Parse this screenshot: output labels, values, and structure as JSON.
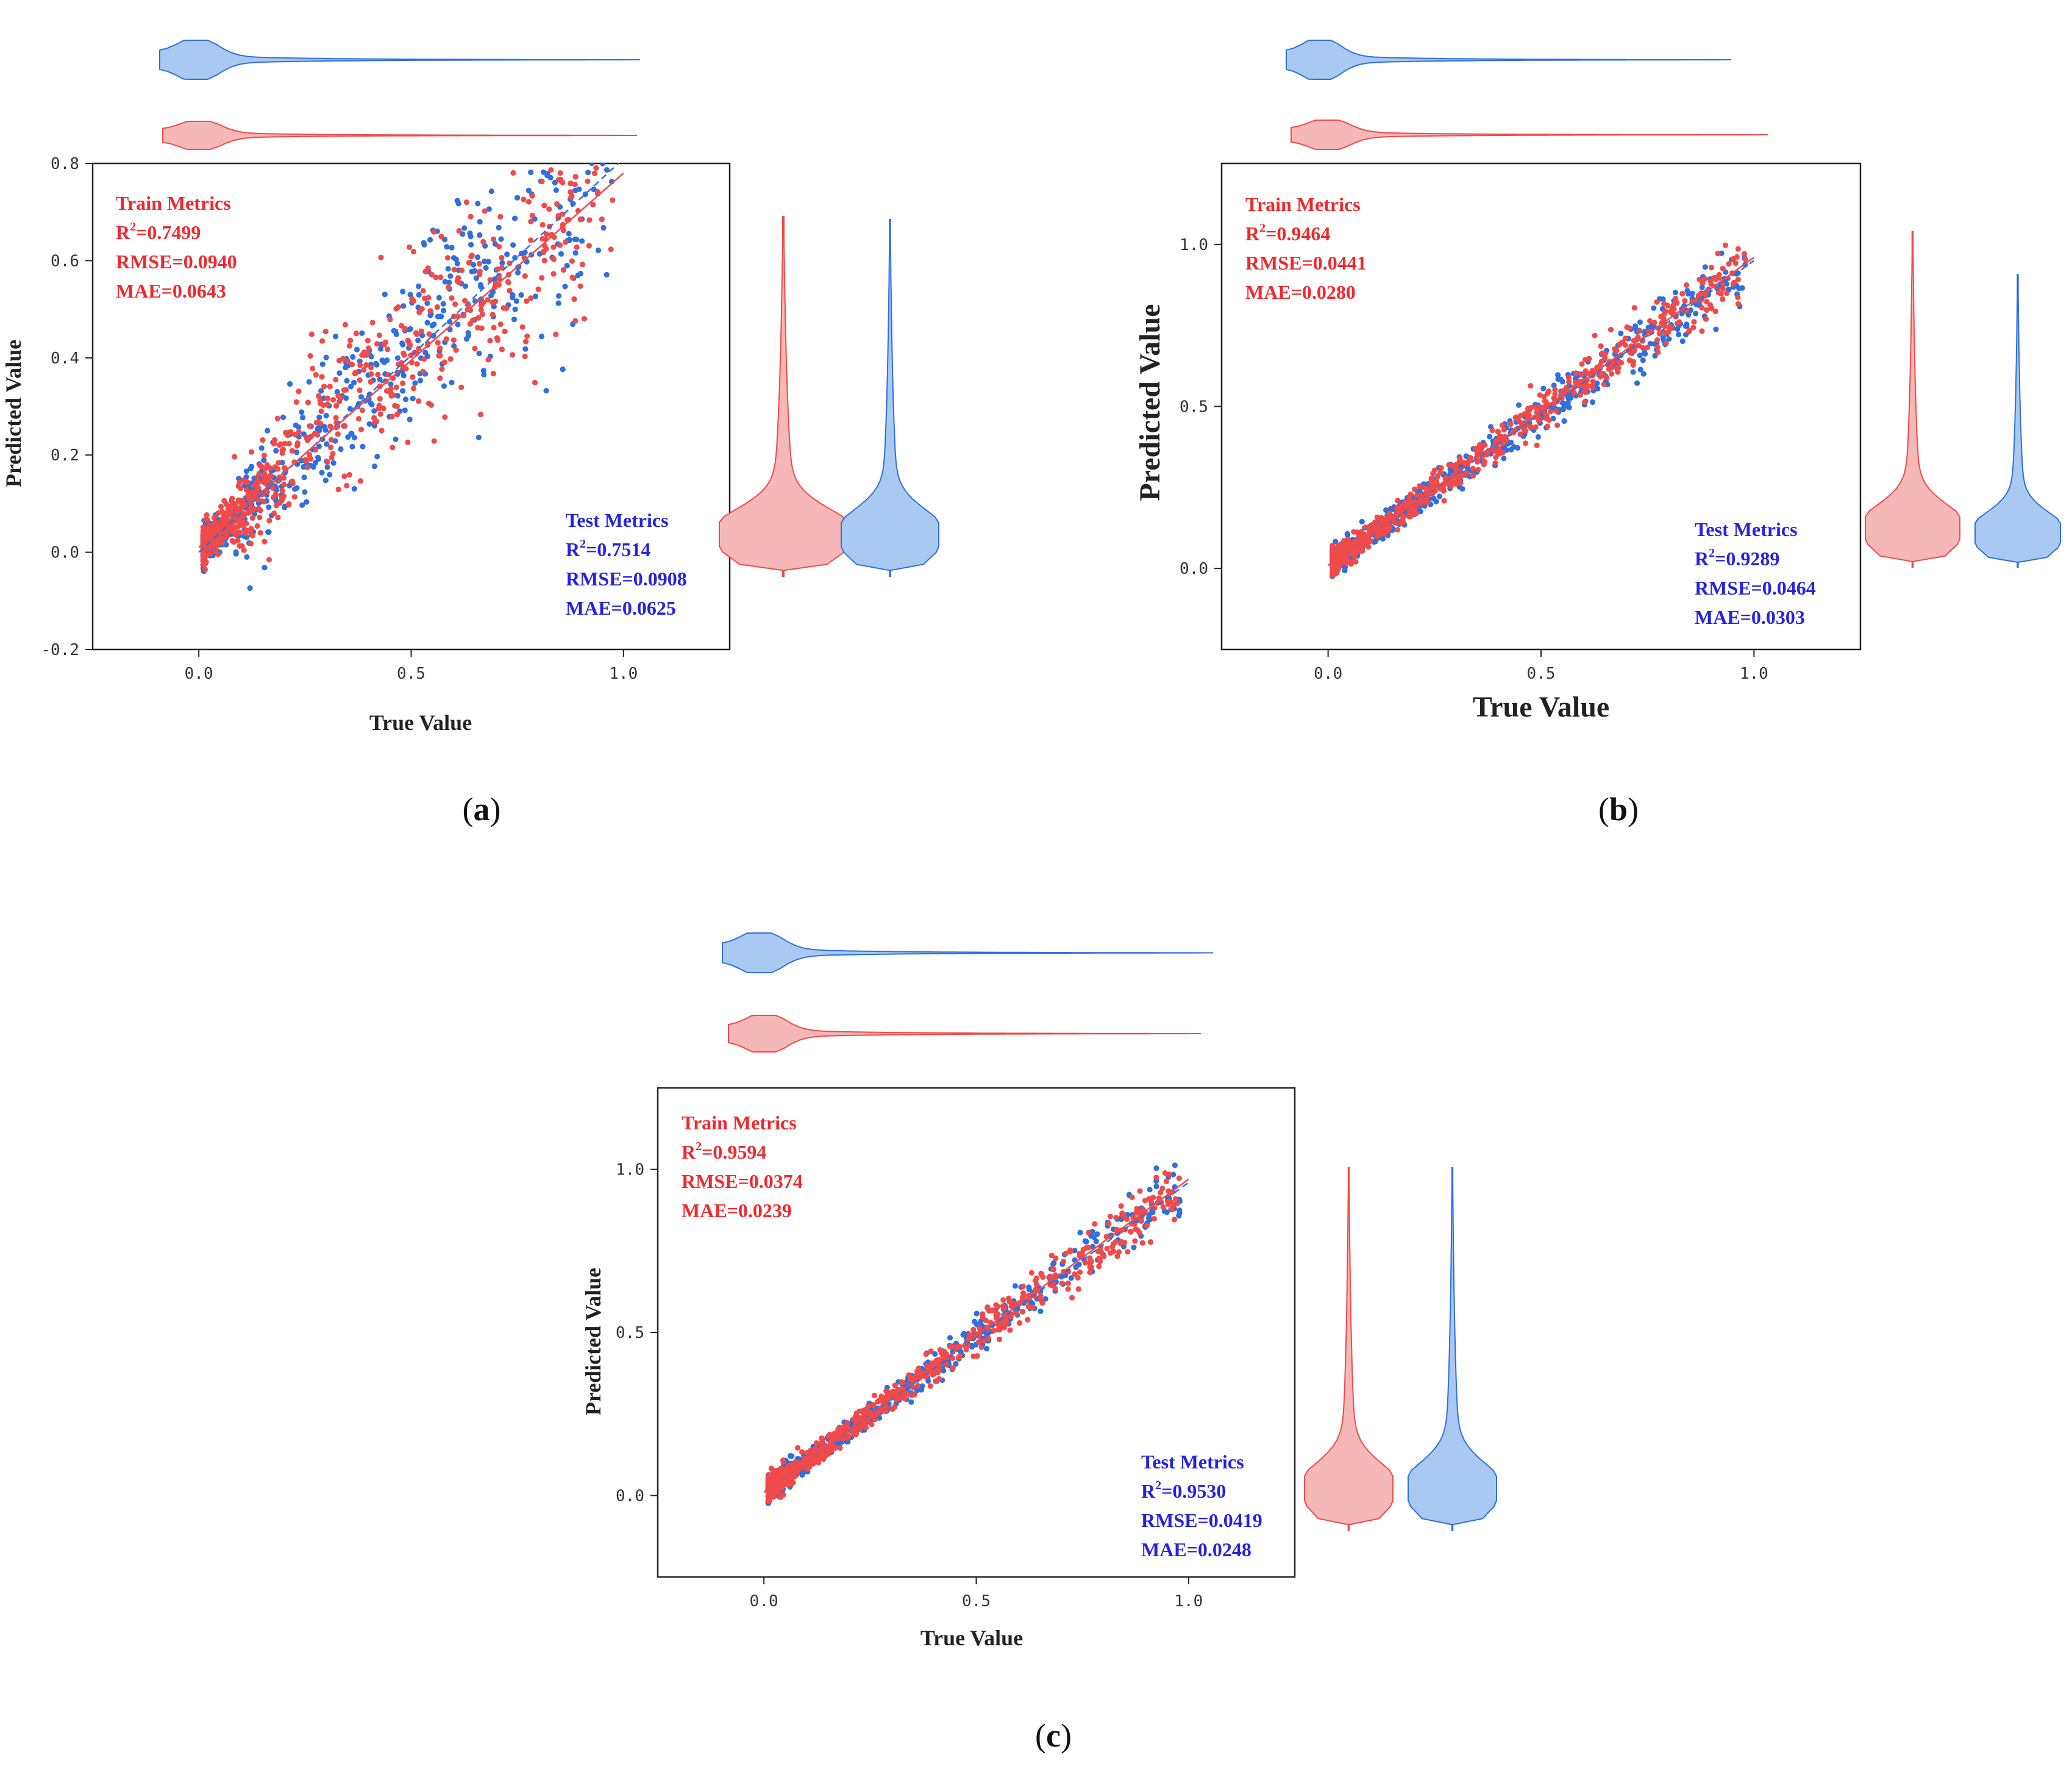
{
  "colors": {
    "train": "#f04a4a",
    "test": "#2f6fde",
    "train_fill": "#f6b7b7",
    "test_fill": "#a9c9f2",
    "train_text": "#f0282d",
    "test_text": "#2323e0"
  },
  "chart_data": [
    {
      "type": "scatter",
      "panel_label": "(a)",
      "panel_letter": "a",
      "xlabel": "True Value",
      "ylabel": "Predicted Value",
      "xlim": [
        -0.25,
        1.25
      ],
      "ylim": [
        -0.2,
        0.8
      ],
      "xticks": [
        0.0,
        0.5,
        1.0
      ],
      "yticks": [
        -0.2,
        0.0,
        0.2,
        0.4,
        0.6,
        0.8
      ],
      "x_tick_labels": [
        "0.0",
        "0.5",
        "1.0"
      ],
      "y_tick_labels": [
        "-0.2",
        "0.0",
        "0.2",
        "0.4",
        "0.6",
        "0.8"
      ],
      "train_metrics": {
        "title": "Train Metrics",
        "r2_prefix": "R",
        "r2_sup": "2",
        "r2_value": "=0.7499",
        "rmse": "RMSE=0.0940",
        "mae": "MAE=0.0643"
      },
      "test_metrics": {
        "title": "Test Metrics",
        "r2_prefix": "R",
        "r2_sup": "2",
        "r2_value": "=0.7514",
        "rmse": "RMSE=0.0908",
        "mae": "MAE=0.0625"
      },
      "series": [
        {
          "name": "Train",
          "fit": {
            "slope": 0.77,
            "intercept": 0.01
          }
        },
        {
          "name": "Test",
          "fit": {
            "slope": 0.81,
            "intercept": 0.0
          }
        }
      ]
    },
    {
      "type": "scatter",
      "panel_label": "(b)",
      "panel_letter": "b",
      "xlabel": "True Value",
      "ylabel": "Predicted Value",
      "xlim": [
        -0.25,
        1.25
      ],
      "ylim": [
        -0.25,
        1.25
      ],
      "xticks": [
        0.0,
        0.5,
        1.0
      ],
      "yticks": [
        0.0,
        0.5,
        1.0
      ],
      "x_tick_labels": [
        "0.0",
        "0.5",
        "1.0"
      ],
      "y_tick_labels": [
        "0.0",
        "0.5",
        "1.0"
      ],
      "train_metrics": {
        "title": "Train Metrics",
        "r2_prefix": "R",
        "r2_sup": "2",
        "r2_value": "=0.9464",
        "rmse": "RMSE=0.0441",
        "mae": "MAE=0.0280"
      },
      "test_metrics": {
        "title": "Test Metrics",
        "r2_prefix": "R",
        "r2_sup": "2",
        "r2_value": "=0.9289",
        "rmse": "RMSE=0.0464",
        "mae": "MAE=0.0303"
      },
      "series": [
        {
          "name": "Train",
          "fit": {
            "slope": 0.95,
            "intercept": 0.01
          }
        },
        {
          "name": "Test",
          "fit": {
            "slope": 0.94,
            "intercept": 0.01
          }
        }
      ]
    },
    {
      "type": "scatter",
      "panel_label": "(c)",
      "panel_letter": "c",
      "xlabel": "True Value",
      "ylabel": "Predicted Value",
      "xlim": [
        -0.25,
        1.25
      ],
      "ylim": [
        -0.25,
        1.25
      ],
      "xticks": [
        0.0,
        0.5,
        1.0
      ],
      "yticks": [
        0.0,
        0.5,
        1.0
      ],
      "x_tick_labels": [
        "0.0",
        "0.5",
        "1.0"
      ],
      "y_tick_labels": [
        "0.0",
        "0.5",
        "1.0"
      ],
      "train_metrics": {
        "title": "Train Metrics",
        "r2_prefix": "R",
        "r2_sup": "2",
        "r2_value": "=0.9594",
        "rmse": "RMSE=0.0374",
        "mae": "MAE=0.0239"
      },
      "test_metrics": {
        "title": "Test Metrics",
        "r2_prefix": "R",
        "r2_sup": "2",
        "r2_value": "=0.9530",
        "rmse": "RMSE=0.0419",
        "mae": "MAE=0.0248"
      },
      "series": [
        {
          "name": "Train",
          "fit": {
            "slope": 0.96,
            "intercept": 0.01
          }
        },
        {
          "name": "Test",
          "fit": {
            "slope": 0.95,
            "intercept": 0.01
          }
        }
      ]
    }
  ]
}
